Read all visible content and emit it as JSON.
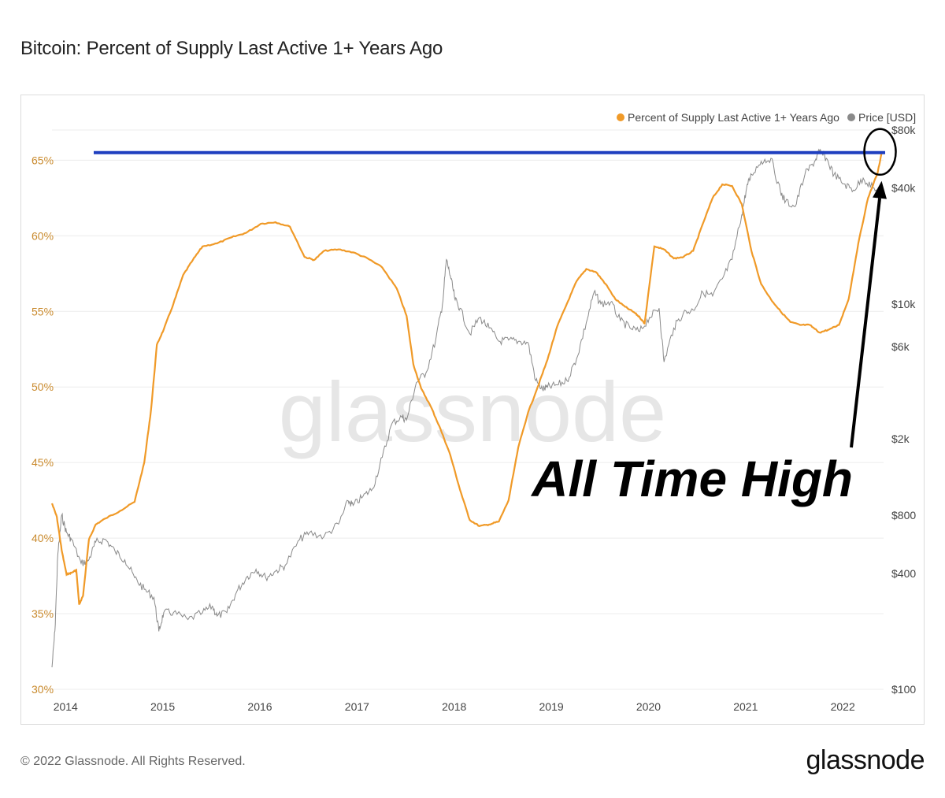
{
  "title": "Bitcoin: Percent of Supply Last Active 1+ Years Ago",
  "watermark": "glassnode",
  "footer": {
    "copyright": "© 2022 Glassnode. All Rights Reserved.",
    "brand": "glassnode"
  },
  "colors": {
    "supply": "#f09a28",
    "price": "#8a8a8a",
    "ath_line": "#1f3fbf",
    "left_axis": "#c98a2e",
    "annotation": "#000000"
  },
  "chart_data": {
    "type": "line",
    "legend": [
      "Percent of Supply Last Active 1+ Years Ago",
      "Price [USD]"
    ],
    "legend_position": "top-right",
    "grid": true,
    "x_ticks": [
      "2014",
      "2015",
      "2016",
      "2017",
      "2018",
      "2019",
      "2020",
      "2021",
      "2022"
    ],
    "x_range": [
      2013.9,
      2022.46
    ],
    "y_left": {
      "ticks": [
        "30%",
        "35%",
        "40%",
        "45%",
        "50%",
        "55%",
        "60%",
        "65%"
      ],
      "range": [
        30,
        67
      ]
    },
    "y_right": {
      "ticks": [
        "$100",
        "$400",
        "$800",
        "$2k",
        "$6k",
        "$10k",
        "$40k",
        "$80k"
      ],
      "scale": "log",
      "range": [
        100,
        80000
      ]
    },
    "annotation": "All Time High",
    "ath_level": 65.5,
    "series": [
      {
        "name": "Percent of Supply Last Active 1+ Years Ago",
        "axis": "left",
        "x": [
          2013.9,
          2013.95,
          2014.0,
          2014.05,
          2014.1,
          2014.15,
          2014.18,
          2014.22,
          2014.28,
          2014.35,
          2014.45,
          2014.6,
          2014.75,
          2014.85,
          2014.92,
          2014.98,
          2015.05,
          2015.15,
          2015.25,
          2015.35,
          2015.45,
          2015.6,
          2015.75,
          2015.9,
          2016.05,
          2016.2,
          2016.35,
          2016.5,
          2016.6,
          2016.7,
          2016.85,
          2017.0,
          2017.15,
          2017.3,
          2017.45,
          2017.55,
          2017.62,
          2017.7,
          2017.8,
          2017.9,
          2018.0,
          2018.1,
          2018.2,
          2018.3,
          2018.4,
          2018.5,
          2018.6,
          2018.7,
          2018.8,
          2018.9,
          2019.0,
          2019.1,
          2019.2,
          2019.3,
          2019.4,
          2019.5,
          2019.6,
          2019.7,
          2019.8,
          2019.9,
          2019.95,
          2020.0,
          2020.1,
          2020.2,
          2020.3,
          2020.4,
          2020.5,
          2020.6,
          2020.7,
          2020.8,
          2020.9,
          2021.0,
          2021.1,
          2021.2,
          2021.3,
          2021.4,
          2021.5,
          2021.6,
          2021.7,
          2021.8,
          2021.9,
          2022.0,
          2022.1,
          2022.2,
          2022.3,
          2022.4,
          2022.44
        ],
        "values": [
          42.3,
          41.4,
          39.2,
          37.6,
          37.7,
          37.9,
          35.6,
          36.2,
          39.9,
          40.9,
          41.3,
          41.8,
          42.4,
          45.0,
          48.5,
          52.8,
          53.8,
          55.5,
          57.4,
          58.4,
          59.3,
          59.5,
          59.9,
          60.2,
          60.8,
          60.9,
          60.6,
          58.6,
          58.4,
          59.0,
          59.1,
          58.9,
          58.5,
          57.9,
          56.5,
          54.7,
          51.5,
          49.9,
          48.7,
          47.2,
          45.5,
          43.2,
          41.2,
          40.8,
          40.9,
          41.1,
          42.5,
          46.0,
          48.3,
          50.0,
          51.8,
          54.0,
          55.5,
          57.0,
          57.8,
          57.6,
          56.8,
          55.8,
          55.3,
          54.9,
          54.6,
          54.2,
          59.3,
          59.1,
          58.5,
          58.6,
          59.0,
          60.8,
          62.5,
          63.4,
          63.3,
          62.1,
          59.0,
          56.8,
          55.8,
          55.0,
          54.3,
          54.1,
          54.1,
          53.6,
          53.8,
          54.1,
          55.8,
          59.5,
          62.5,
          64.2,
          65.5
        ]
      },
      {
        "name": "Price [USD]",
        "axis": "right",
        "x": [
          2013.9,
          2013.93,
          2013.96,
          2014.0,
          2014.05,
          2014.1,
          2014.2,
          2014.28,
          2014.35,
          2014.45,
          2014.55,
          2014.65,
          2014.75,
          2014.85,
          2014.95,
          2015.0,
          2015.05,
          2015.15,
          2015.3,
          2015.45,
          2015.55,
          2015.6,
          2015.7,
          2015.8,
          2015.9,
          2016.0,
          2016.1,
          2016.2,
          2016.3,
          2016.45,
          2016.55,
          2016.7,
          2016.85,
          2016.95,
          2017.0,
          2017.1,
          2017.2,
          2017.3,
          2017.4,
          2017.5,
          2017.55,
          2017.65,
          2017.75,
          2017.85,
          2017.92,
          2017.96,
          2018.0,
          2018.05,
          2018.1,
          2018.2,
          2018.3,
          2018.4,
          2018.5,
          2018.6,
          2018.7,
          2018.8,
          2018.88,
          2018.95,
          2019.0,
          2019.1,
          2019.2,
          2019.3,
          2019.4,
          2019.48,
          2019.55,
          2019.65,
          2019.75,
          2019.85,
          2019.95,
          2020.05,
          2020.15,
          2020.2,
          2020.3,
          2020.4,
          2020.5,
          2020.6,
          2020.7,
          2020.8,
          2020.9,
          2021.0,
          2021.05,
          2021.1,
          2021.2,
          2021.3,
          2021.4,
          2021.45,
          2021.55,
          2021.65,
          2021.75,
          2021.8,
          2021.87,
          2021.95,
          2022.05,
          2022.15,
          2022.25,
          2022.35,
          2022.44
        ],
        "values": [
          130,
          200,
          500,
          800,
          650,
          600,
          450,
          470,
          580,
          600,
          520,
          470,
          380,
          330,
          300,
          200,
          250,
          250,
          230,
          250,
          270,
          240,
          250,
          320,
          380,
          420,
          380,
          410,
          440,
          600,
          650,
          620,
          720,
          950,
          900,
          1000,
          1100,
          1600,
          2400,
          2600,
          2500,
          3900,
          4400,
          6500,
          10000,
          17000,
          14000,
          10500,
          9500,
          7000,
          8500,
          7500,
          6400,
          6500,
          6400,
          6300,
          4000,
          3600,
          3700,
          3800,
          4000,
          5200,
          8000,
          11500,
          10000,
          10200,
          8200,
          7500,
          7200,
          8500,
          9500,
          5000,
          7500,
          9000,
          9300,
          11500,
          11000,
          13500,
          17000,
          29000,
          40000,
          47000,
          55000,
          57000,
          38000,
          34000,
          32000,
          47000,
          55000,
          62000,
          57000,
          47000,
          42000,
          39000,
          45000,
          40000,
          36000
        ]
      }
    ]
  }
}
